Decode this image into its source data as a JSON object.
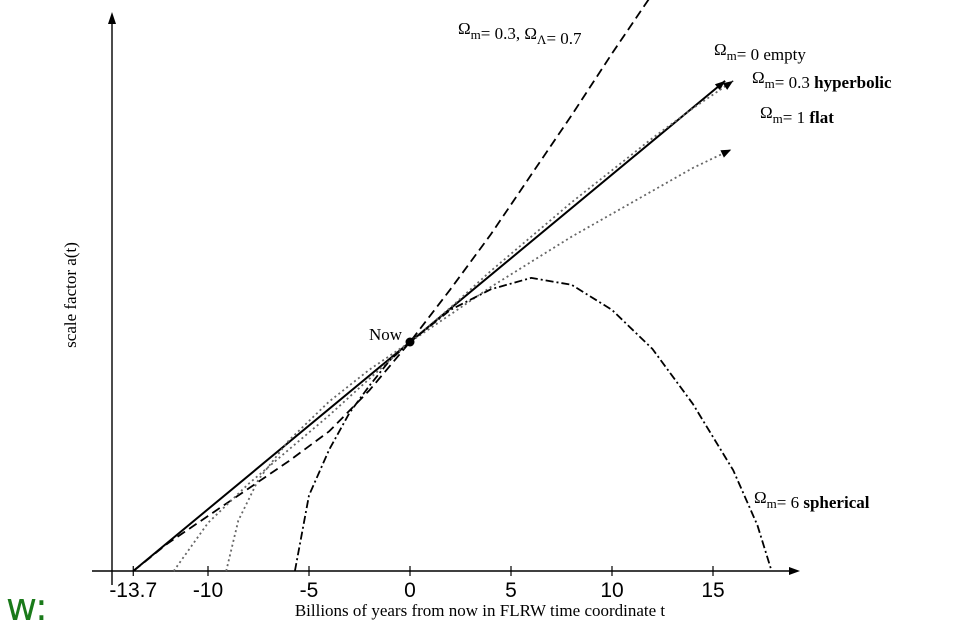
{
  "corner_label": "w:",
  "chart_data": {
    "type": "line",
    "title": "",
    "xlabel": "Billions of years from now in FLRW time coordinate t",
    "ylabel": "scale factor a(t)",
    "xlim": [
      -15.0,
      19.0
    ],
    "ylim": [
      0,
      2.6
    ],
    "x_ticks": [
      -13.7,
      -10,
      -5,
      0,
      5,
      10,
      15
    ],
    "x_tick_labels": [
      "-13.7",
      "-10",
      "-5",
      "0",
      "5",
      "10",
      "15"
    ],
    "grid": false,
    "now_point": {
      "x": 0,
      "y": 1.0,
      "label": "Now"
    },
    "series": [
      {
        "name_parts": [
          {
            "text": "Ω",
            "sub": "m"
          },
          {
            "text": "= 0.3, "
          },
          {
            "text": "Ω",
            "sub": "Λ"
          },
          {
            "text": "= 0.7"
          }
        ],
        "line_style": "dashed",
        "x": [
          -13.7,
          -12,
          -10,
          -8,
          -6,
          -4,
          -2,
          0,
          2,
          4,
          6,
          8,
          10,
          12,
          13.0
        ],
        "values": [
          0,
          0.12,
          0.24,
          0.36,
          0.48,
          0.61,
          0.79,
          1.0,
          1.23,
          1.47,
          1.73,
          1.99,
          2.26,
          2.52,
          2.66
        ]
      },
      {
        "name_parts": [
          {
            "text": "Ω",
            "sub": "m"
          },
          {
            "text": "= 0 empty"
          }
        ],
        "line_style": "solid",
        "x": [
          -13.7,
          0,
          15.6
        ],
        "values": [
          0,
          1.0,
          2.14
        ]
      },
      {
        "name_parts": [
          {
            "text": "Ω",
            "sub": "m"
          },
          {
            "text": "= 0.3 "
          },
          {
            "text": "hyperbolic",
            "bold": true
          }
        ],
        "line_style": "dotted",
        "x": [
          -11.7,
          -10,
          -8,
          -6,
          -4,
          -2,
          0,
          2,
          4,
          6,
          8,
          10,
          12,
          14,
          16.0
        ],
        "values": [
          0,
          0.21,
          0.38,
          0.53,
          0.68,
          0.84,
          1.0,
          1.15,
          1.31,
          1.46,
          1.61,
          1.75,
          1.89,
          2.02,
          2.14
        ]
      },
      {
        "name_parts": [
          {
            "text": "Ω",
            "sub": "m"
          },
          {
            "text": "= 1 "
          },
          {
            "text": "flat",
            "bold": true
          }
        ],
        "line_style": "dotted",
        "x": [
          -9.1,
          -8.5,
          -7.5,
          -6,
          -4,
          -2,
          0,
          2,
          4,
          6,
          8,
          10,
          12,
          14,
          15.9
        ],
        "values": [
          0,
          0.22,
          0.4,
          0.57,
          0.74,
          0.88,
          1.0,
          1.12,
          1.24,
          1.35,
          1.46,
          1.56,
          1.66,
          1.76,
          1.84
        ]
      },
      {
        "name_parts": [
          {
            "text": "Ω",
            "sub": "m"
          },
          {
            "text": "= 6 "
          },
          {
            "text": "spherical",
            "bold": true
          }
        ],
        "line_style": "dashdot",
        "x": [
          -5.7,
          -5,
          -4,
          -3,
          -2,
          -1,
          0,
          2,
          4,
          6,
          8,
          10,
          12,
          14,
          16,
          17.2,
          17.9
        ],
        "values": [
          0,
          0.33,
          0.53,
          0.69,
          0.81,
          0.92,
          1.0,
          1.14,
          1.23,
          1.28,
          1.25,
          1.14,
          0.97,
          0.73,
          0.44,
          0.2,
          0
        ]
      }
    ]
  }
}
